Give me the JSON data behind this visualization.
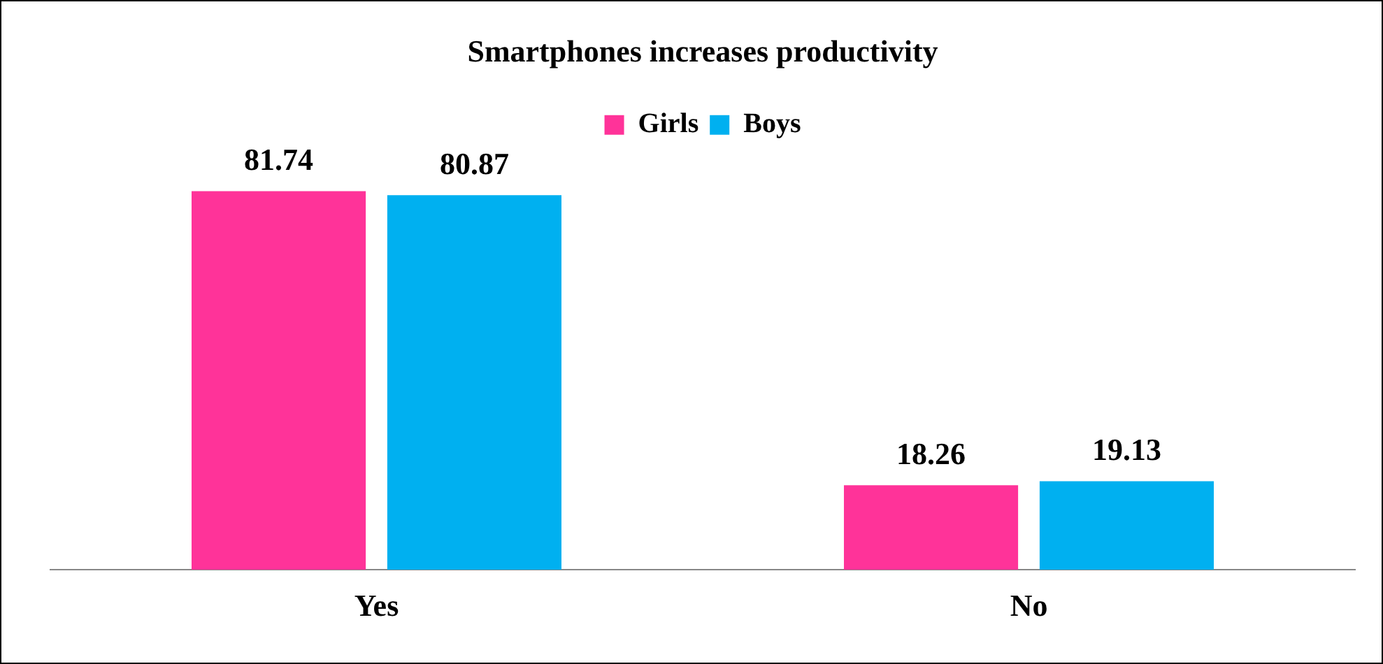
{
  "chart_data": {
    "type": "bar",
    "title": "Smartphones increases productivity",
    "categories": [
      "Yes",
      "No"
    ],
    "series": [
      {
        "name": "Girls",
        "color": "#ff3399",
        "values": [
          81.74,
          18.26
        ]
      },
      {
        "name": "Boys",
        "color": "#00b0f0",
        "values": [
          80.87,
          19.13
        ]
      }
    ],
    "data_labels": true,
    "legend": "top",
    "grid": false
  }
}
